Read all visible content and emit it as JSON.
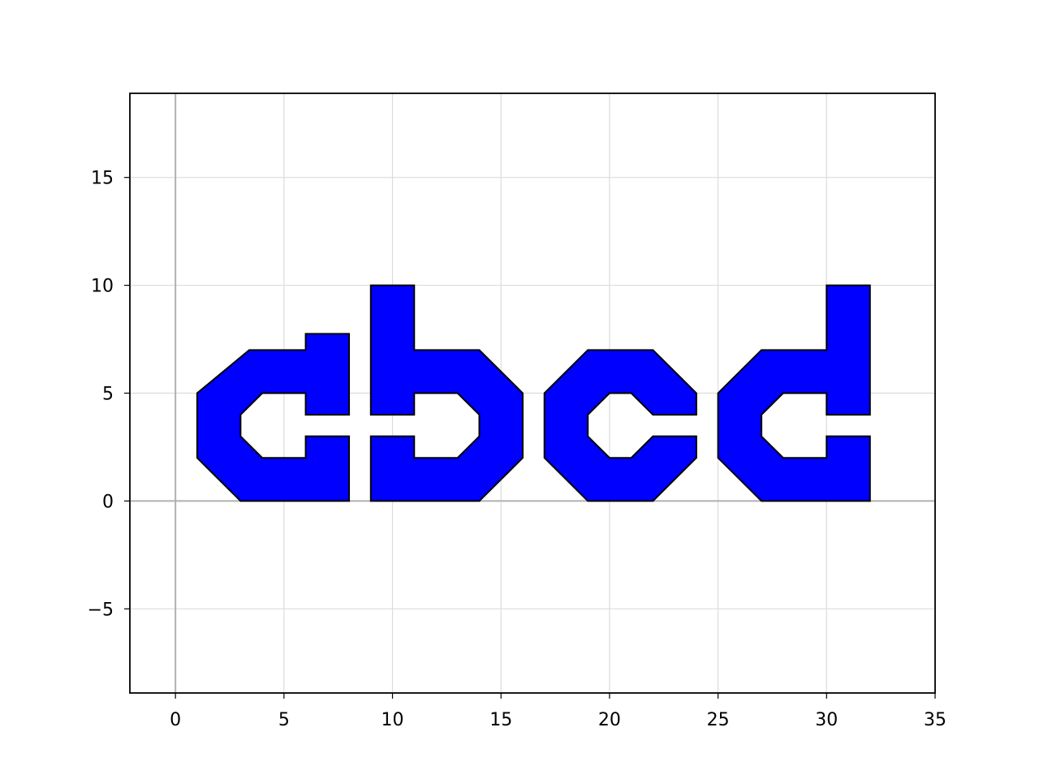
{
  "chart_data": {
    "type": "area",
    "title": "",
    "xlabel": "",
    "ylabel": "",
    "xlim": [
      -2.1,
      35.0
    ],
    "ylim": [
      -8.9,
      18.9
    ],
    "xticks": [
      0,
      5,
      10,
      15,
      20,
      25,
      30,
      35
    ],
    "yticks": [
      -5,
      0,
      5,
      10,
      15
    ],
    "xtick_labels": [
      "0",
      "5",
      "10",
      "15",
      "20",
      "25",
      "30",
      "35"
    ],
    "ytick_labels": [
      "−5",
      "0",
      "5",
      "10",
      "15"
    ],
    "grid": true,
    "zero_lines": true,
    "fill_color": "#0000ff",
    "edge_color": "#000000",
    "shapes": [
      {
        "name": "letter-c-1",
        "outer": [
          [
            1,
            2
          ],
          [
            1,
            5
          ],
          [
            3.4,
            7
          ],
          [
            6,
            7
          ],
          [
            6,
            7.75
          ],
          [
            8,
            7.75
          ],
          [
            8,
            4
          ],
          [
            6,
            4
          ],
          [
            6,
            5
          ],
          [
            4,
            5
          ],
          [
            3,
            4
          ],
          [
            3,
            3
          ],
          [
            4,
            2
          ],
          [
            6,
            2
          ],
          [
            6,
            3
          ],
          [
            8,
            3
          ],
          [
            8,
            0
          ],
          [
            3,
            0
          ]
        ],
        "hole": null
      },
      {
        "name": "letter-b",
        "outer": [
          [
            9,
            0
          ],
          [
            9,
            3
          ],
          [
            11,
            3
          ],
          [
            11,
            2
          ],
          [
            13,
            2
          ],
          [
            14,
            3
          ],
          [
            14,
            4
          ],
          [
            13,
            5
          ],
          [
            11,
            5
          ],
          [
            11,
            4
          ],
          [
            9,
            4
          ],
          [
            9,
            10
          ],
          [
            11,
            10
          ],
          [
            11,
            7
          ],
          [
            14,
            7
          ],
          [
            16,
            5
          ],
          [
            16,
            2
          ],
          [
            14,
            0
          ]
        ],
        "hole": null
      },
      {
        "name": "letter-c-2",
        "outer": [
          [
            17,
            2
          ],
          [
            17,
            5
          ],
          [
            19,
            7
          ],
          [
            22,
            7
          ],
          [
            24,
            5
          ],
          [
            24,
            4
          ],
          [
            22,
            4
          ],
          [
            21,
            5
          ],
          [
            20,
            5
          ],
          [
            19,
            4
          ],
          [
            19,
            3
          ],
          [
            20,
            2
          ],
          [
            21,
            2
          ],
          [
            22,
            3
          ],
          [
            24,
            3
          ],
          [
            24,
            2
          ],
          [
            22,
            0
          ],
          [
            19,
            0
          ]
        ],
        "hole": null
      },
      {
        "name": "letter-d",
        "outer": [
          [
            25,
            2
          ],
          [
            25,
            5
          ],
          [
            27,
            7
          ],
          [
            30,
            7
          ],
          [
            30,
            10
          ],
          [
            32,
            10
          ],
          [
            32,
            4
          ],
          [
            30,
            4
          ],
          [
            30,
            5
          ],
          [
            28,
            5
          ],
          [
            27,
            4
          ],
          [
            27,
            3
          ],
          [
            28,
            2
          ],
          [
            30,
            2
          ],
          [
            30,
            3
          ],
          [
            32,
            3
          ],
          [
            32,
            0
          ],
          [
            27,
            0
          ]
        ],
        "hole": null
      }
    ]
  }
}
